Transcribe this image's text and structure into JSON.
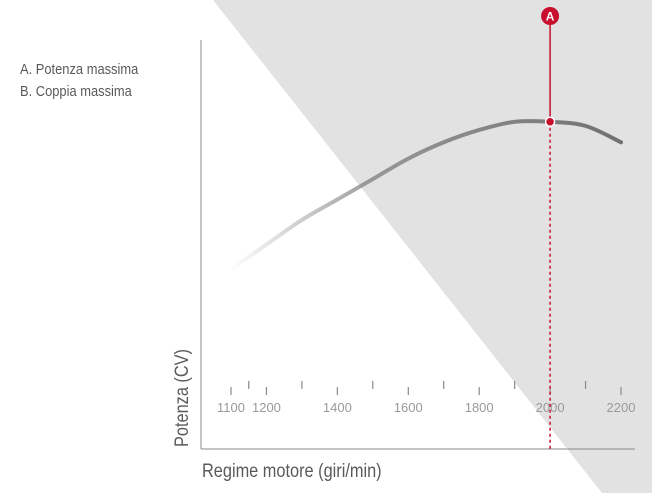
{
  "chart_data": {
    "type": "line",
    "title": "",
    "xlabel": "Regime motore (giri/min)",
    "ylabel": "Potenza (CV)",
    "xlim": [
      1100,
      2200
    ],
    "x_ticks": [
      1100,
      1200,
      1400,
      1600,
      1800,
      2000,
      2200
    ],
    "grid": false,
    "legend": {
      "placement": "top-left",
      "entries": [
        "A. Potenza massima",
        "B. Coppia massima"
      ]
    },
    "series": [
      {
        "x": [
          1100,
          1200,
          1300,
          1400,
          1500,
          1600,
          1700,
          1800,
          1900,
          2000,
          2100,
          2200
        ],
        "values": [
          0.44,
          0.5,
          0.56,
          0.61,
          0.66,
          0.71,
          0.75,
          0.78,
          0.8,
          0.8,
          0.79,
          0.75
        ]
      }
    ],
    "annotations": [
      {
        "label": "A",
        "x": 2000,
        "y": 0.8,
        "style": "dashed-vertical-marker"
      }
    ],
    "colors": {
      "curve": "#7d7d7d",
      "marker": "#c8102e",
      "shade": "#e2e2e2",
      "axis": "#8a8a8a",
      "text": "#5a5a5a",
      "tick_label": "#9a9a9a"
    }
  }
}
